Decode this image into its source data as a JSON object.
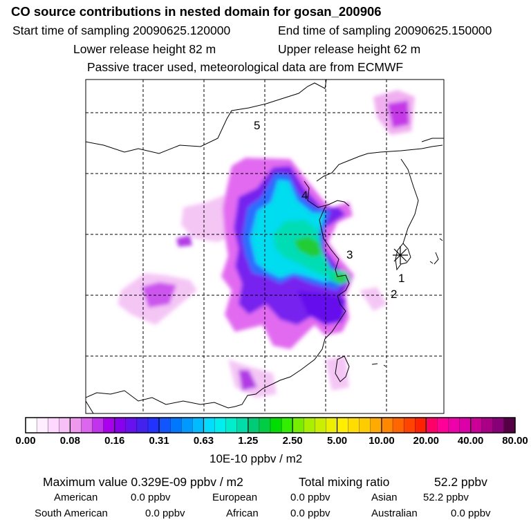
{
  "title": "CO  source contributions in nested domain for gosan_200906",
  "sampling": {
    "start": "Start time of sampling 20090625.120000",
    "end": "End time of sampling 20090625.150000"
  },
  "release": {
    "lower": "Lower release height   82 m",
    "upper": "Upper release height   62 m"
  },
  "note": "Passive tracer used, meteorological data are from ECMWF",
  "map": {
    "region_labels": [
      "1",
      "2",
      "3",
      "4",
      "5"
    ],
    "receptor_marker": "asterisk-icon"
  },
  "colorbar": {
    "tick_labels": [
      "0.00",
      "0.08",
      "0.16",
      "0.31",
      "0.63",
      "1.25",
      "2.50",
      "5.00",
      "10.00",
      "20.00",
      "40.00",
      "80.00"
    ],
    "colors": [
      "#ffffff",
      "#ffeeff",
      "#ffd8ff",
      "#f7c0f7",
      "#ee99ee",
      "#dd66ee",
      "#c233ee",
      "#aa00ee",
      "#8800ee",
      "#6611ee",
      "#4422ee",
      "#2233ff",
      "#1155ff",
      "#0077ff",
      "#0099ff",
      "#00bbff",
      "#00ddff",
      "#00eeee",
      "#00eecc",
      "#00ddaa",
      "#00cc77",
      "#00cc44",
      "#00dd00",
      "#33ee00",
      "#77ee00",
      "#aaee00",
      "#ccee00",
      "#eeee00",
      "#ffee00",
      "#ffdd00",
      "#ffcc00",
      "#ffaa00",
      "#ff8800",
      "#ff6600",
      "#ff4400",
      "#ff2200",
      "#ff0066",
      "#ff0099",
      "#ee00aa",
      "#dd00aa",
      "#cc0099",
      "#aa0088",
      "#880077",
      "#550044"
    ],
    "unit": "10E-10 ppbv / m2"
  },
  "stats": {
    "maximum": "Maximum value  0.329E-09 ppbv / m2",
    "total": "Total mixing ratio",
    "total_value": "52.2 ppbv",
    "regions": [
      {
        "name": "American",
        "value": "0.0 ppbv"
      },
      {
        "name": "European",
        "value": "0.0 ppbv"
      },
      {
        "name": "Asian",
        "value": "52.2 ppbv"
      },
      {
        "name": "South American",
        "value": "0.0 ppbv"
      },
      {
        "name": "African",
        "value": "0.0 ppbv"
      },
      {
        "name": "Australian",
        "value": "0.0 ppbv"
      }
    ]
  }
}
